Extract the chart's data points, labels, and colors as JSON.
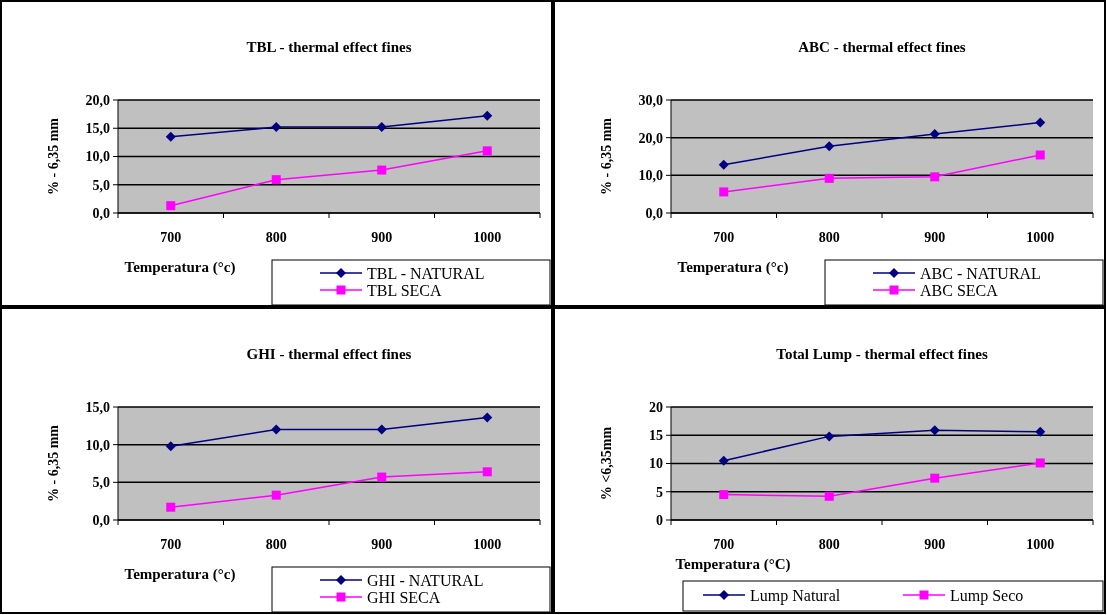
{
  "chart_data": [
    {
      "type": "line",
      "title": "TBL - thermal effect fines",
      "xlabel": "Temperatura (°c)",
      "ylabel": "% - 6,35 mm",
      "categories": [
        "700",
        "800",
        "900",
        "1000"
      ],
      "ylim": [
        0,
        20
      ],
      "yticks": [
        {
          "value": 0,
          "label": "0,0"
        },
        {
          "value": 5,
          "label": "5,0"
        },
        {
          "value": 10,
          "label": "10,0"
        },
        {
          "value": 15,
          "label": "15,0"
        },
        {
          "value": 20,
          "label": "20,0"
        }
      ],
      "grid": "y",
      "legend": "bottom right",
      "series": [
        {
          "name": "TBL - NATURAL",
          "color": "#000080",
          "marker": "diamond",
          "values": [
            13.5,
            15.2,
            15.2,
            17.2
          ]
        },
        {
          "name": "TBL SECA",
          "color": "#ff00ff",
          "marker": "square",
          "values": [
            1.3,
            5.9,
            7.6,
            11.0
          ]
        }
      ]
    },
    {
      "type": "line",
      "title": "ABC - thermal effect fines",
      "xlabel": "Temperatura (°c)",
      "ylabel": "% - 6,35 mm",
      "categories": [
        "700",
        "800",
        "900",
        "1000"
      ],
      "ylim": [
        0,
        30
      ],
      "yticks": [
        {
          "value": 0,
          "label": "0,0"
        },
        {
          "value": 10,
          "label": "10,0"
        },
        {
          "value": 20,
          "label": "20,0"
        },
        {
          "value": 30,
          "label": "30,0"
        }
      ],
      "grid": "y",
      "legend": "bottom right",
      "series": [
        {
          "name": "ABC - NATURAL",
          "color": "#000080",
          "marker": "diamond",
          "values": [
            12.8,
            17.7,
            21.0,
            24.0
          ]
        },
        {
          "name": "ABC SECA",
          "color": "#ff00ff",
          "marker": "square",
          "values": [
            5.6,
            9.2,
            9.6,
            15.4
          ]
        }
      ]
    },
    {
      "type": "line",
      "title": "GHI - thermal effect fines",
      "xlabel": "Temperatura (°c)",
      "ylabel": "% - 6,35 mm",
      "categories": [
        "700",
        "800",
        "900",
        "1000"
      ],
      "ylim": [
        0,
        15
      ],
      "yticks": [
        {
          "value": 0,
          "label": "0,0"
        },
        {
          "value": 5,
          "label": "5,0"
        },
        {
          "value": 10,
          "label": "10,0"
        },
        {
          "value": 15,
          "label": "15,0"
        }
      ],
      "grid": "y",
      "legend": "bottom right",
      "series": [
        {
          "name": "GHI - NATURAL",
          "color": "#000080",
          "marker": "diamond",
          "values": [
            9.8,
            12.0,
            12.0,
            13.6
          ]
        },
        {
          "name": "GHI SECA",
          "color": "#ff00ff",
          "marker": "square",
          "values": [
            1.7,
            3.3,
            5.7,
            6.4
          ]
        }
      ]
    },
    {
      "type": "line",
      "title": "Total Lump - thermal effect fines",
      "xlabel": "Temperatura (°C)",
      "ylabel": "% <6,35mm",
      "categories": [
        "700",
        "800",
        "900",
        "1000"
      ],
      "ylim": [
        0,
        20
      ],
      "yticks": [
        0,
        5,
        10,
        15,
        20
      ],
      "grid": "y",
      "legend": "bottom",
      "series": [
        {
          "name": "Lump Natural",
          "color": "#000080",
          "marker": "diamond",
          "values": [
            10.5,
            14.8,
            15.9,
            15.6
          ]
        },
        {
          "name": "Lump Seco",
          "color": "#ff00ff",
          "marker": "square",
          "values": [
            4.5,
            4.2,
            7.4,
            10.1
          ]
        }
      ]
    }
  ]
}
